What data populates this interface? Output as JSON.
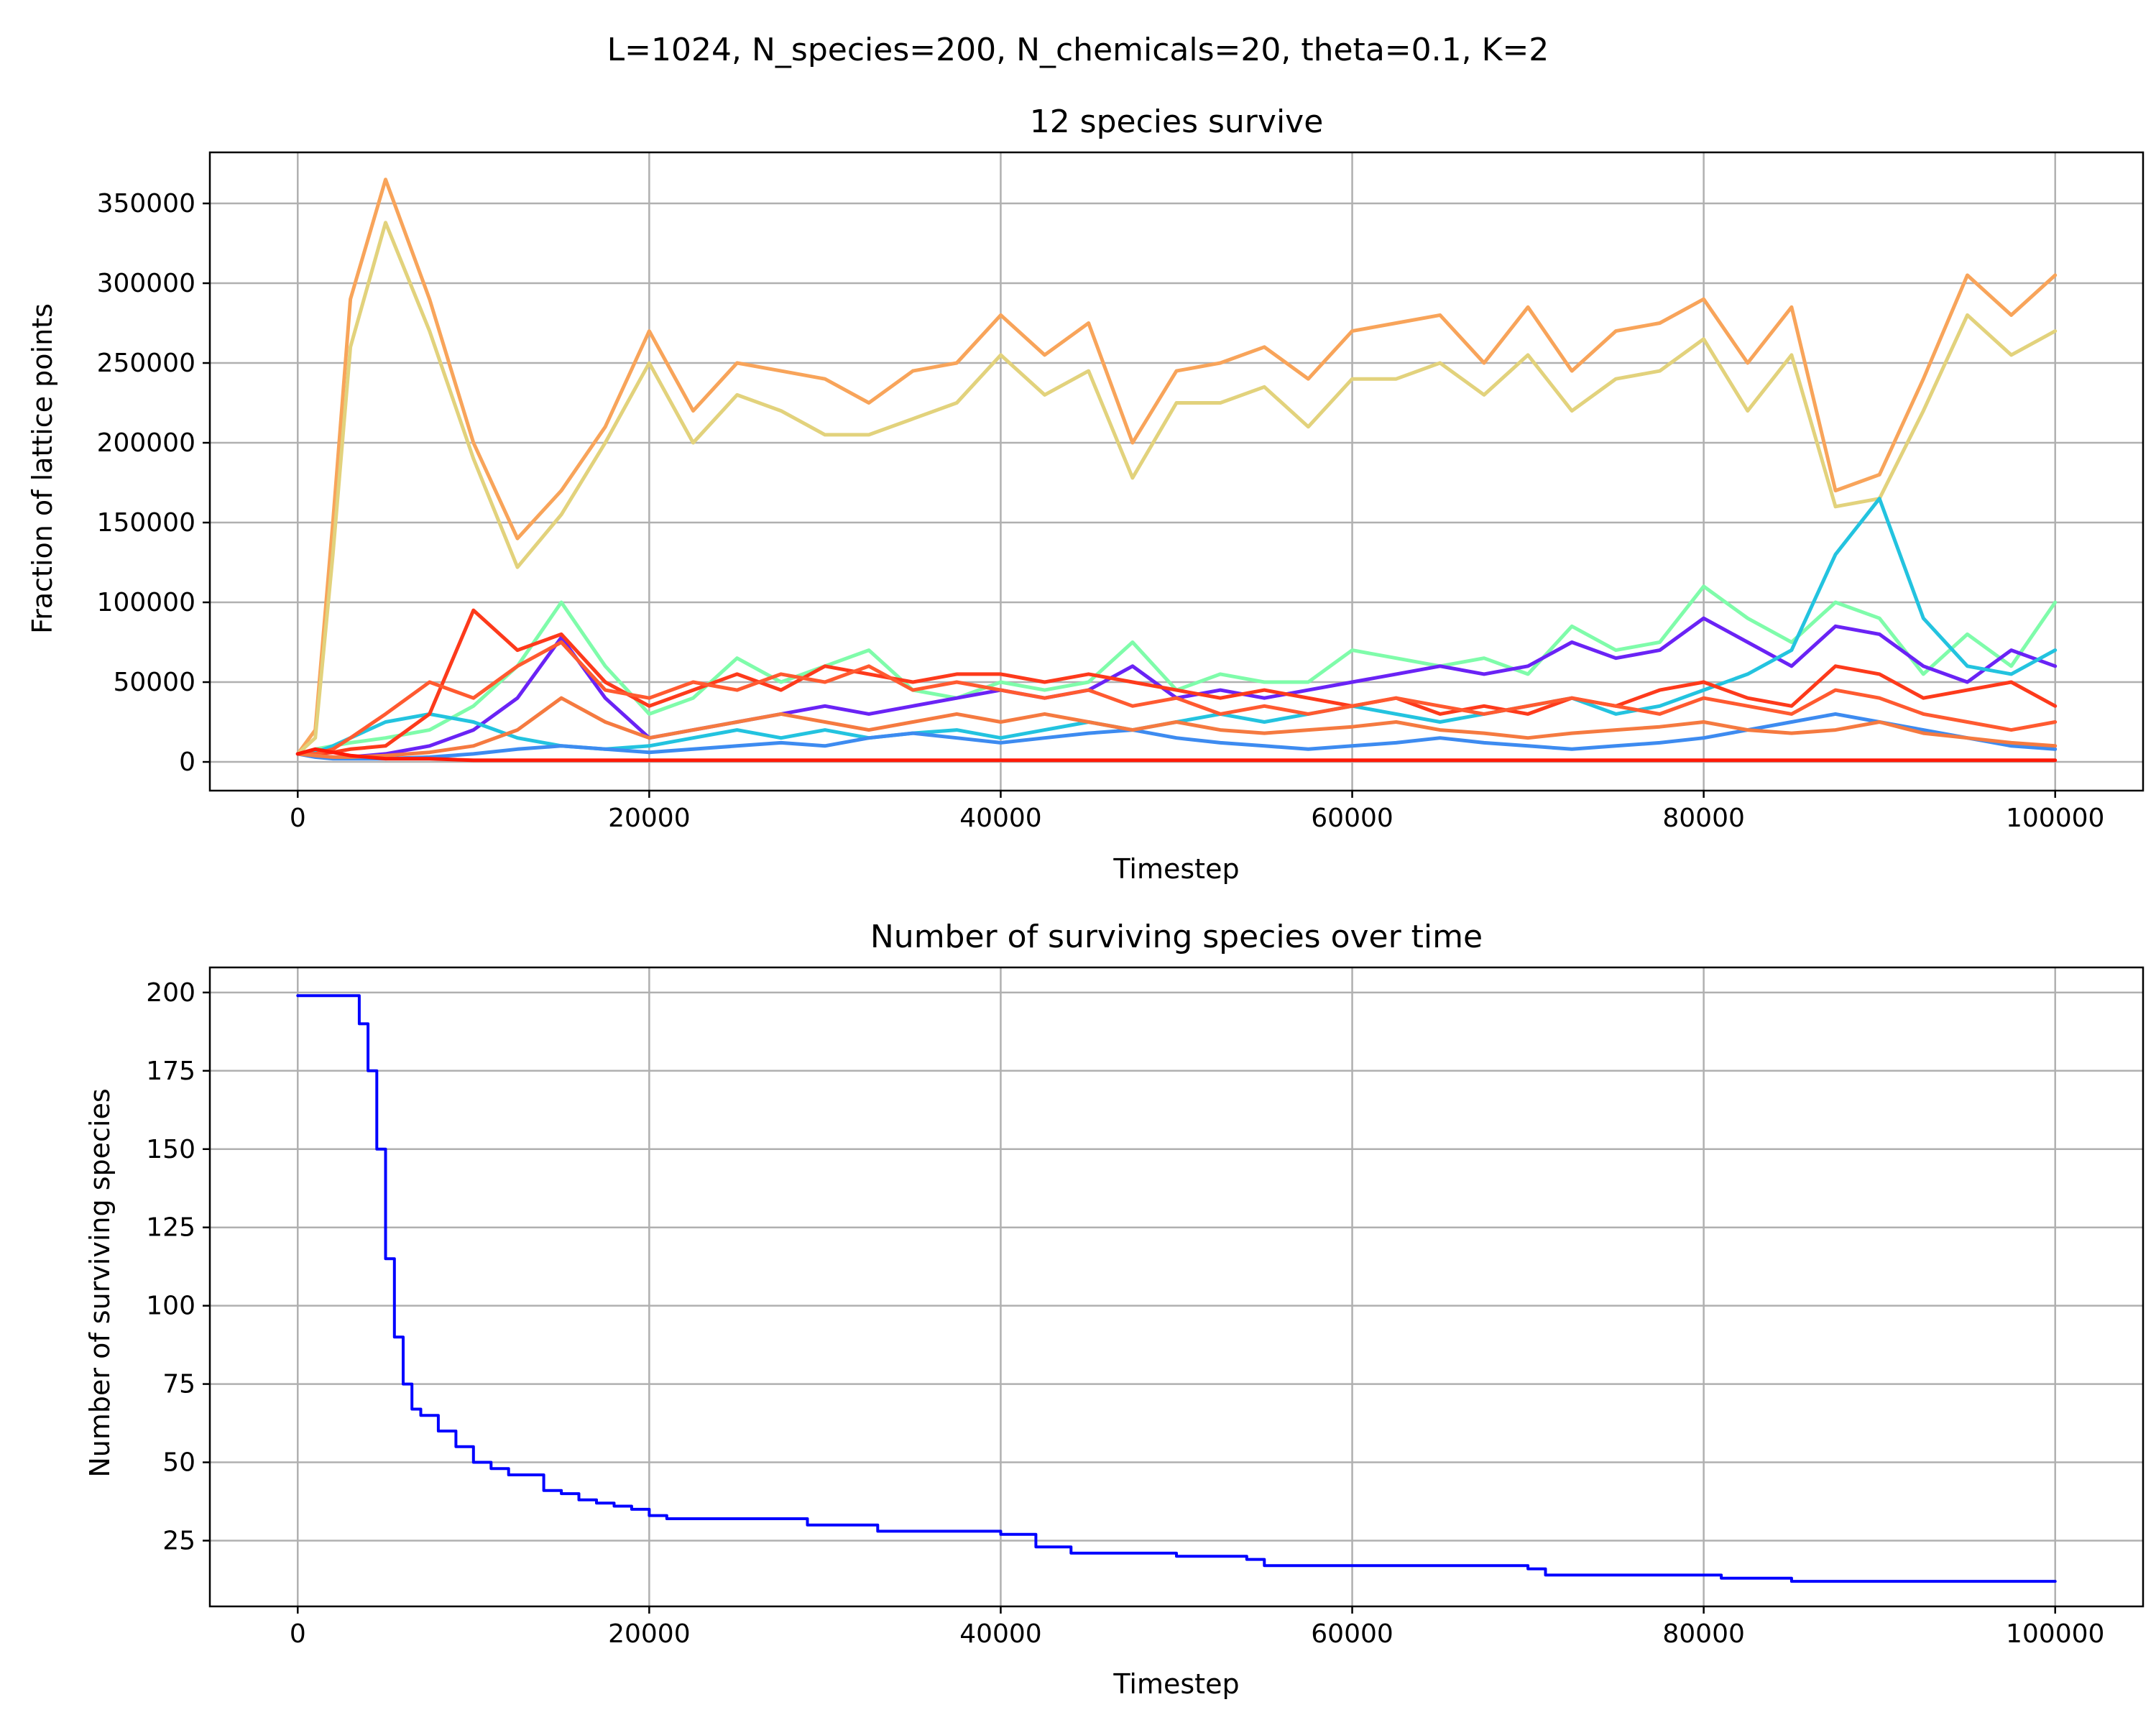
{
  "figure": {
    "suptitle": "L=1024, N_species=200, N_chemicals=20, theta=0.1, K=2"
  },
  "chart_data": [
    {
      "type": "line",
      "title": "12 species survive",
      "xlabel": "Timestep",
      "ylabel": "Fraction of lattice points",
      "xlim": [
        -5000,
        105000
      ],
      "ylim": [
        -18000,
        382000
      ],
      "xticks": [
        0,
        20000,
        40000,
        60000,
        80000,
        100000
      ],
      "yticks": [
        0,
        50000,
        100000,
        150000,
        200000,
        250000,
        300000,
        350000
      ],
      "grid": true,
      "colormap": "rainbow",
      "x": [
        0,
        1000,
        2000,
        3000,
        5000,
        7500,
        10000,
        12500,
        15000,
        17500,
        20000,
        22500,
        25000,
        27500,
        30000,
        32500,
        35000,
        37500,
        40000,
        42500,
        45000,
        47500,
        50000,
        52500,
        55000,
        57500,
        60000,
        62500,
        65000,
        67500,
        70000,
        72500,
        75000,
        77500,
        80000,
        82500,
        85000,
        87500,
        90000,
        92500,
        95000,
        97500,
        100000
      ],
      "series": [
        {
          "color": "#f8a45a",
          "values": [
            5000,
            20000,
            150000,
            290000,
            365000,
            290000,
            200000,
            140000,
            170000,
            210000,
            270000,
            220000,
            250000,
            245000,
            240000,
            225000,
            245000,
            250000,
            280000,
            255000,
            275000,
            200000,
            245000,
            250000,
            260000,
            240000,
            270000,
            275000,
            280000,
            250000,
            285000,
            245000,
            270000,
            275000,
            290000,
            250000,
            285000,
            170000,
            180000,
            240000,
            305000,
            280000,
            305000
          ]
        },
        {
          "color": "#e2d27c",
          "values": [
            5000,
            15000,
            130000,
            260000,
            338000,
            270000,
            190000,
            122000,
            155000,
            200000,
            250000,
            200000,
            230000,
            220000,
            205000,
            205000,
            215000,
            225000,
            255000,
            230000,
            245000,
            178000,
            225000,
            225000,
            235000,
            210000,
            240000,
            240000,
            250000,
            230000,
            255000,
            220000,
            240000,
            245000,
            265000,
            220000,
            255000,
            160000,
            165000,
            220000,
            280000,
            255000,
            270000
          ]
        },
        {
          "color": "#7ffcaa",
          "values": [
            5000,
            8000,
            10000,
            12000,
            15000,
            20000,
            35000,
            60000,
            100000,
            60000,
            30000,
            40000,
            65000,
            50000,
            60000,
            70000,
            45000,
            40000,
            50000,
            45000,
            50000,
            75000,
            45000,
            55000,
            50000,
            50000,
            70000,
            65000,
            60000,
            65000,
            55000,
            85000,
            70000,
            75000,
            110000,
            90000,
            75000,
            100000,
            90000,
            55000,
            80000,
            60000,
            100000
          ]
        },
        {
          "color": "#6a23f5",
          "values": [
            5000,
            4000,
            3000,
            3000,
            5000,
            10000,
            20000,
            40000,
            78000,
            40000,
            15000,
            20000,
            25000,
            30000,
            35000,
            30000,
            35000,
            40000,
            45000,
            40000,
            45000,
            60000,
            40000,
            45000,
            40000,
            45000,
            50000,
            55000,
            60000,
            55000,
            60000,
            75000,
            65000,
            70000,
            90000,
            75000,
            60000,
            85000,
            80000,
            60000,
            50000,
            70000,
            60000
          ]
        },
        {
          "color": "#23c3df",
          "values": [
            5000,
            6000,
            10000,
            15000,
            25000,
            30000,
            25000,
            15000,
            10000,
            8000,
            10000,
            15000,
            20000,
            15000,
            20000,
            15000,
            18000,
            20000,
            15000,
            20000,
            25000,
            20000,
            25000,
            30000,
            25000,
            30000,
            35000,
            30000,
            25000,
            30000,
            35000,
            40000,
            30000,
            35000,
            45000,
            55000,
            70000,
            130000,
            165000,
            90000,
            60000,
            55000,
            70000
          ]
        },
        {
          "color": "#fd3a1b",
          "values": [
            5000,
            5000,
            6000,
            8000,
            10000,
            30000,
            95000,
            70000,
            80000,
            50000,
            35000,
            45000,
            55000,
            45000,
            60000,
            55000,
            50000,
            55000,
            55000,
            50000,
            55000,
            50000,
            45000,
            40000,
            45000,
            40000,
            35000,
            40000,
            30000,
            35000,
            30000,
            40000,
            35000,
            45000,
            50000,
            40000,
            35000,
            60000,
            55000,
            40000,
            45000,
            50000,
            35000
          ]
        },
        {
          "color": "#ff5a30",
          "values": [
            5000,
            5000,
            8000,
            15000,
            30000,
            50000,
            40000,
            60000,
            75000,
            45000,
            40000,
            50000,
            45000,
            55000,
            50000,
            60000,
            45000,
            50000,
            45000,
            40000,
            45000,
            35000,
            40000,
            30000,
            35000,
            30000,
            35000,
            40000,
            35000,
            30000,
            35000,
            40000,
            35000,
            30000,
            40000,
            35000,
            30000,
            45000,
            40000,
            30000,
            25000,
            20000,
            25000
          ]
        },
        {
          "color": "#3d8bf0",
          "values": [
            5000,
            3000,
            2000,
            2000,
            2000,
            3000,
            5000,
            8000,
            10000,
            8000,
            6000,
            8000,
            10000,
            12000,
            10000,
            15000,
            18000,
            15000,
            12000,
            15000,
            18000,
            20000,
            15000,
            12000,
            10000,
            8000,
            10000,
            12000,
            15000,
            12000,
            10000,
            8000,
            10000,
            12000,
            15000,
            20000,
            25000,
            30000,
            25000,
            20000,
            15000,
            10000,
            8000
          ]
        },
        {
          "color": "#f57a40",
          "values": [
            5000,
            4000,
            3000,
            3000,
            4000,
            6000,
            10000,
            20000,
            40000,
            25000,
            15000,
            20000,
            25000,
            30000,
            25000,
            20000,
            25000,
            30000,
            25000,
            30000,
            25000,
            20000,
            25000,
            20000,
            18000,
            20000,
            22000,
            25000,
            20000,
            18000,
            15000,
            18000,
            20000,
            22000,
            25000,
            20000,
            18000,
            20000,
            25000,
            18000,
            15000,
            12000,
            10000
          ]
        },
        {
          "color": "#ff1a08",
          "values": [
            5000,
            8000,
            6000,
            4000,
            2000,
            2000,
            1000,
            1000,
            1000,
            1000,
            1000,
            1000,
            1000,
            1000,
            1000,
            1000,
            1000,
            1000,
            1000,
            1000,
            1000,
            1000,
            1000,
            1000,
            1000,
            1000,
            1000,
            1000,
            1000,
            1000,
            1000,
            1000,
            1000,
            1000,
            1000,
            1000,
            1000,
            1000,
            1000,
            1000,
            1000,
            1000,
            1000
          ]
        }
      ]
    },
    {
      "type": "line",
      "title": "Number of surviving species over time",
      "xlabel": "Timestep",
      "ylabel": "Number of surviving species",
      "xlim": [
        -5000,
        105000
      ],
      "ylim": [
        4,
        208
      ],
      "xticks": [
        0,
        20000,
        40000,
        60000,
        80000,
        100000
      ],
      "yticks": [
        25,
        50,
        75,
        100,
        125,
        150,
        175,
        200
      ],
      "grid": true,
      "step": true,
      "series": [
        {
          "color": "#0000ff",
          "x": [
            0,
            3000,
            3500,
            4000,
            4500,
            5000,
            5500,
            6000,
            6500,
            7000,
            8000,
            9000,
            10000,
            11000,
            12000,
            14000,
            15000,
            16000,
            17000,
            18000,
            19000,
            20000,
            21000,
            25000,
            29000,
            33000,
            40000,
            42000,
            44000,
            50000,
            54000,
            55000,
            60000,
            70000,
            71000,
            75000,
            80000,
            81000,
            84000,
            85000,
            90000,
            100000
          ],
          "values": [
            199,
            199,
            190,
            175,
            150,
            115,
            90,
            75,
            67,
            65,
            60,
            55,
            50,
            48,
            46,
            41,
            40,
            38,
            37,
            36,
            35,
            33,
            32,
            32,
            30,
            28,
            27,
            23,
            21,
            20,
            19,
            17,
            17,
            16,
            14,
            14,
            14,
            13,
            13,
            12,
            12,
            12
          ]
        }
      ]
    }
  ]
}
